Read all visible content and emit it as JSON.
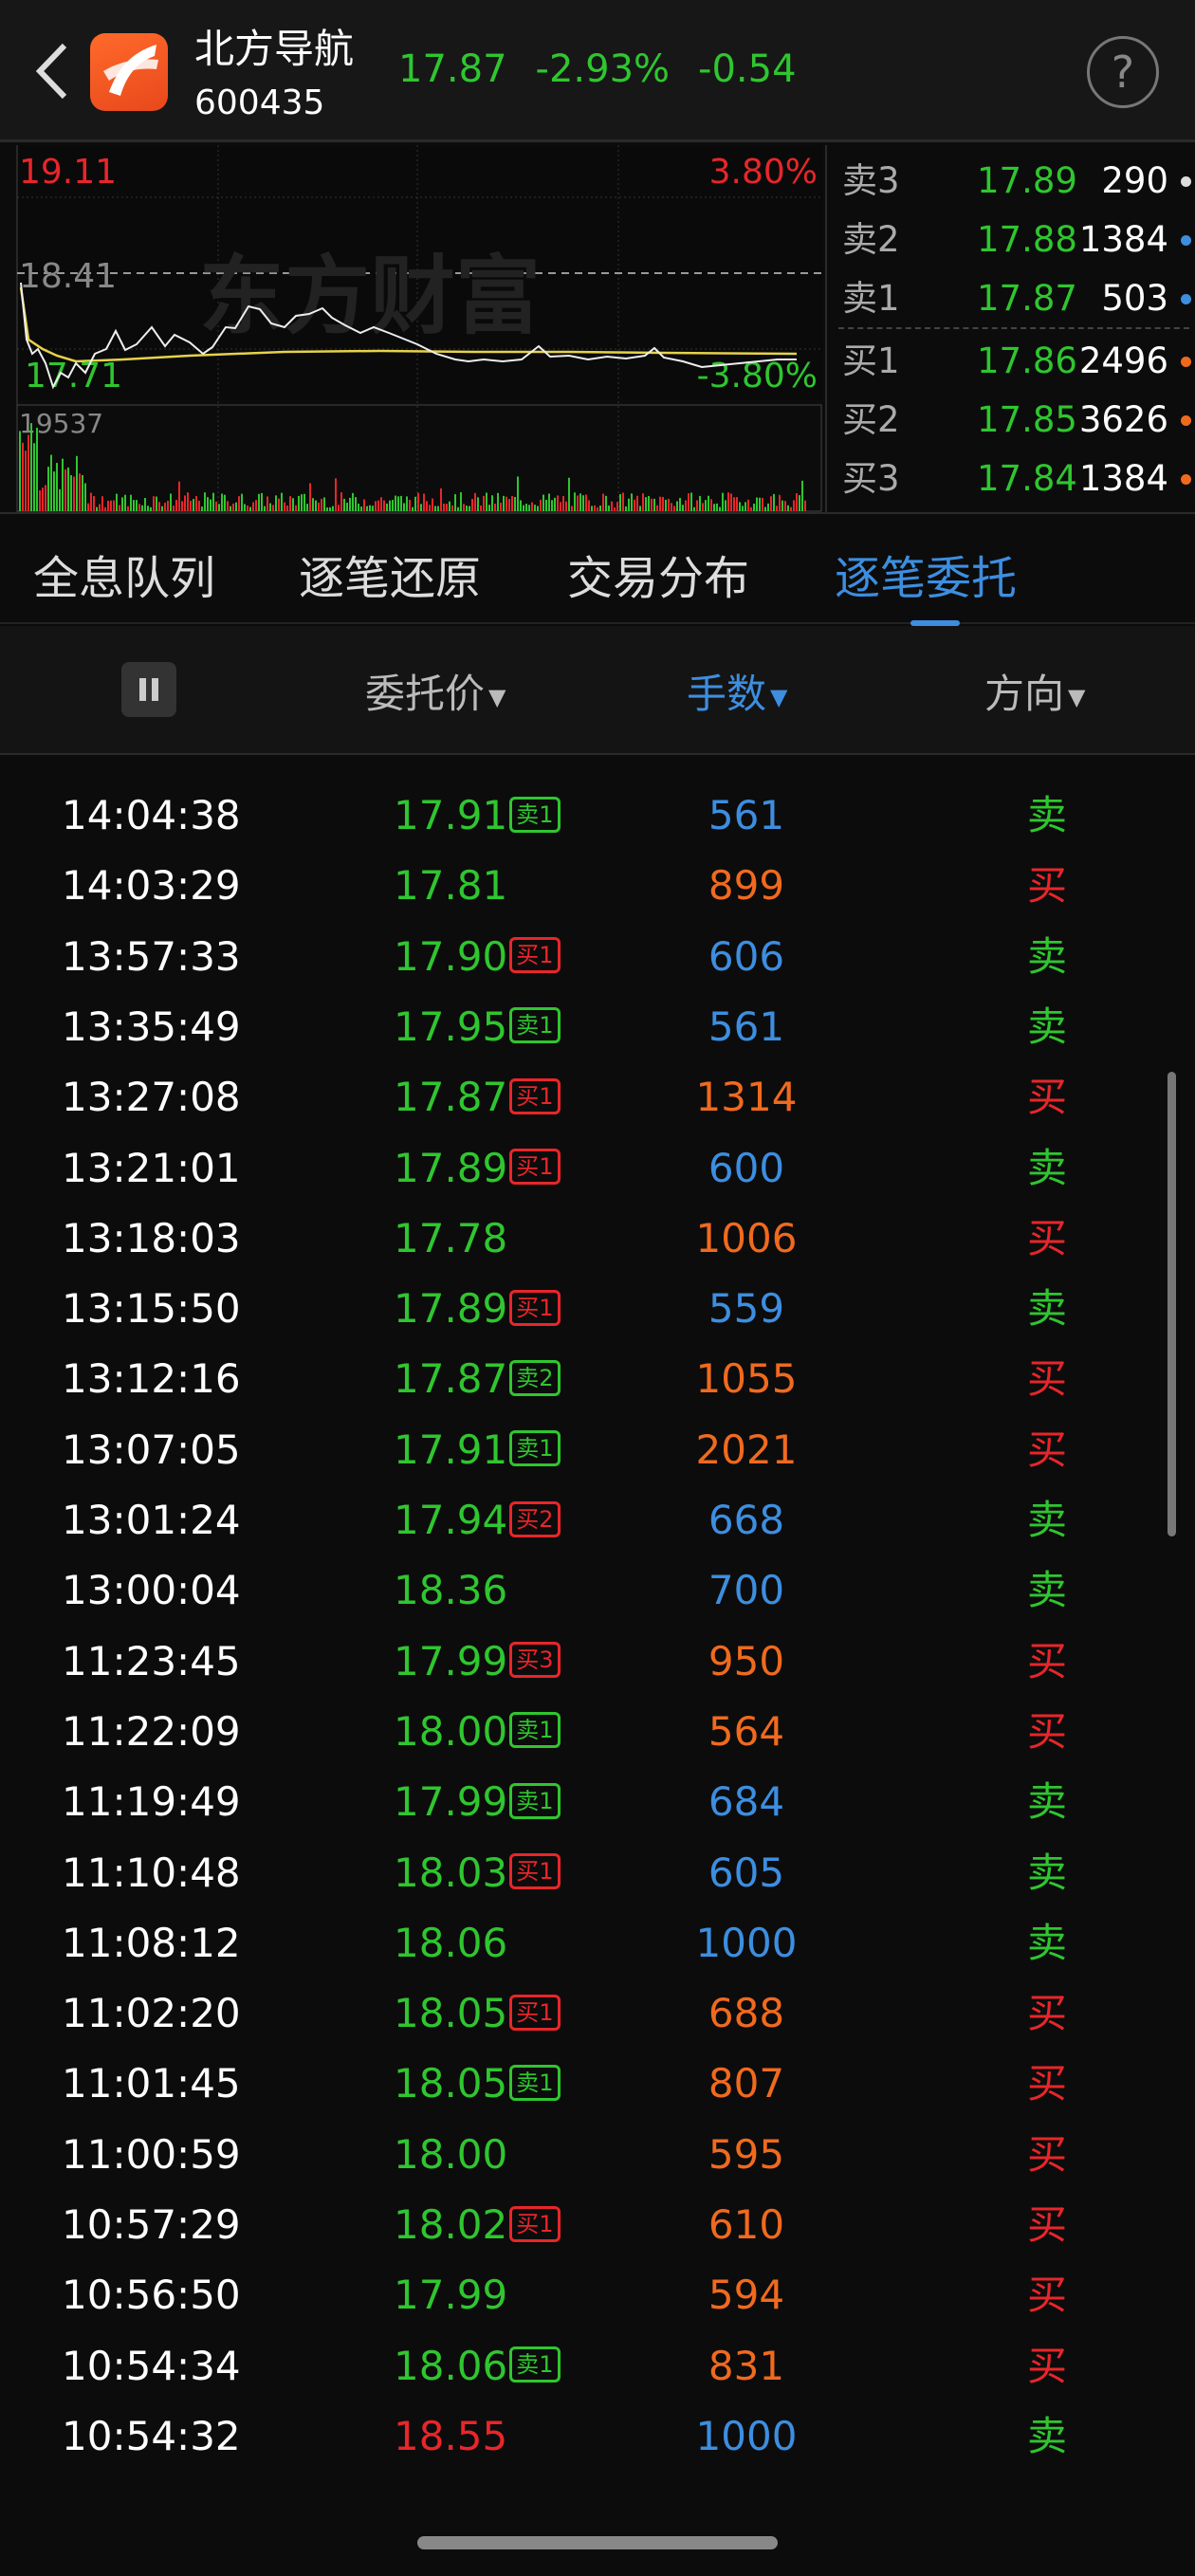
{
  "header": {
    "title": "北方导航",
    "code": "600435",
    "price": "17.87",
    "change_pct": "-2.93%",
    "change": "-0.54",
    "help": "?"
  },
  "chart": {
    "high_price": "19.11",
    "high_pct": "3.80%",
    "prev_close": "18.41",
    "low_price": "17.71",
    "low_pct": "-3.80%",
    "max_volume": "19537",
    "watermark": "东方财富"
  },
  "orderbook": [
    {
      "label": "卖3",
      "price": "17.89",
      "volume": "290",
      "dot": "#dddddd"
    },
    {
      "label": "卖2",
      "price": "17.88",
      "volume": "1384",
      "dot": "#3d8ee0"
    },
    {
      "label": "卖1",
      "price": "17.87",
      "volume": "503",
      "dot": "#3d8ee0"
    },
    {
      "label": "买1",
      "price": "17.86",
      "volume": "2496",
      "dot": "#f06a1e"
    },
    {
      "label": "买2",
      "price": "17.85",
      "volume": "3626",
      "dot": "#f06a1e"
    },
    {
      "label": "买3",
      "price": "17.84",
      "volume": "1384",
      "dot": "#f06a1e"
    }
  ],
  "tabs": [
    {
      "label": "全息队列"
    },
    {
      "label": "逐笔还原"
    },
    {
      "label": "交易分布"
    },
    {
      "label": "逐笔委托",
      "active": true
    }
  ],
  "columns": {
    "price": "委托价",
    "qty": "手数",
    "direction": "方向"
  },
  "colors": {
    "up": "#e8262a",
    "down": "#2fc62f",
    "accent": "#3d8ee0",
    "buy_qty": "#f06a1e",
    "sell_qty": "#3d8ee0"
  },
  "rows": [
    {
      "time": "14:04:38",
      "price": "17.91",
      "badge": "卖1",
      "qty": "561",
      "dir": "卖"
    },
    {
      "time": "14:03:29",
      "price": "17.81",
      "badge": "",
      "qty": "899",
      "dir": "买"
    },
    {
      "time": "13:57:33",
      "price": "17.90",
      "badge": "买1",
      "qty": "606",
      "dir": "卖"
    },
    {
      "time": "13:35:49",
      "price": "17.95",
      "badge": "卖1",
      "qty": "561",
      "dir": "卖"
    },
    {
      "time": "13:27:08",
      "price": "17.87",
      "badge": "买1",
      "qty": "1314",
      "dir": "买"
    },
    {
      "time": "13:21:01",
      "price": "17.89",
      "badge": "买1",
      "qty": "600",
      "dir": "卖"
    },
    {
      "time": "13:18:03",
      "price": "17.78",
      "badge": "",
      "qty": "1006",
      "dir": "买"
    },
    {
      "time": "13:15:50",
      "price": "17.89",
      "badge": "买1",
      "qty": "559",
      "dir": "卖"
    },
    {
      "time": "13:12:16",
      "price": "17.87",
      "badge": "卖2",
      "qty": "1055",
      "dir": "买"
    },
    {
      "time": "13:07:05",
      "price": "17.91",
      "badge": "卖1",
      "qty": "2021",
      "dir": "买"
    },
    {
      "time": "13:01:24",
      "price": "17.94",
      "badge": "买2",
      "qty": "668",
      "dir": "卖"
    },
    {
      "time": "13:00:04",
      "price": "18.36",
      "badge": "",
      "qty": "700",
      "dir": "卖"
    },
    {
      "time": "11:23:45",
      "price": "17.99",
      "badge": "买3",
      "qty": "950",
      "dir": "买"
    },
    {
      "time": "11:22:09",
      "price": "18.00",
      "badge": "卖1",
      "qty": "564",
      "dir": "买"
    },
    {
      "time": "11:19:49",
      "price": "17.99",
      "badge": "卖1",
      "qty": "684",
      "dir": "卖"
    },
    {
      "time": "11:10:48",
      "price": "18.03",
      "badge": "买1",
      "qty": "605",
      "dir": "卖"
    },
    {
      "time": "11:08:12",
      "price": "18.06",
      "badge": "",
      "qty": "1000",
      "dir": "卖"
    },
    {
      "time": "11:02:20",
      "price": "18.05",
      "badge": "买1",
      "qty": "688",
      "dir": "买"
    },
    {
      "time": "11:01:45",
      "price": "18.05",
      "badge": "卖1",
      "qty": "807",
      "dir": "买"
    },
    {
      "time": "11:00:59",
      "price": "18.00",
      "badge": "",
      "qty": "595",
      "dir": "买"
    },
    {
      "time": "10:57:29",
      "price": "18.02",
      "badge": "买1",
      "qty": "610",
      "dir": "买"
    },
    {
      "time": "10:56:50",
      "price": "17.99",
      "badge": "",
      "qty": "594",
      "dir": "买"
    },
    {
      "time": "10:54:34",
      "price": "18.06",
      "badge": "卖1",
      "qty": "831",
      "dir": "买"
    },
    {
      "time": "10:54:32",
      "price": "18.55",
      "badge": "",
      "qty": "1000",
      "dir": "卖"
    }
  ]
}
